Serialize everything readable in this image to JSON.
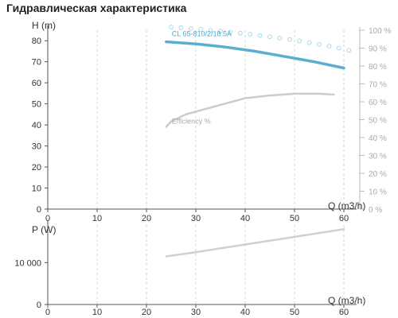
{
  "title": "Гидравлическая характеристика",
  "chart_data": [
    {
      "type": "line",
      "name": "head-chart",
      "xlabel": "Q (m3/h)",
      "ylabel": "H (m)",
      "y2label": "",
      "xlim": [
        0,
        60
      ],
      "ylim": [
        0,
        85
      ],
      "y2lim": [
        0,
        100
      ],
      "xticks": [
        "0",
        "10",
        "20",
        "30",
        "40",
        "50",
        "60"
      ],
      "yticks": [
        "0",
        "10",
        "20",
        "30",
        "40",
        "50",
        "60",
        "70",
        "80"
      ],
      "y2ticks": [
        "0 %",
        "10 %",
        "20 %",
        "30 %",
        "40 %",
        "50 %",
        "60 %",
        "70 %",
        "80 %",
        "90 %",
        "100 %"
      ],
      "grid": true,
      "series": [
        {
          "name": "CL 65-810/2/18.5A",
          "axis": "left",
          "color": "#5aaed0",
          "x": [
            24,
            30,
            36,
            42,
            48,
            54,
            60
          ],
          "y": [
            79.5,
            78.5,
            77,
            75,
            72.5,
            70,
            67
          ]
        },
        {
          "name": "Efficiency %",
          "axis": "right",
          "color": "#cccccc",
          "x": [
            24,
            25,
            28,
            32,
            36,
            40,
            45,
            50,
            55,
            58
          ],
          "y": [
            46,
            49,
            53,
            56,
            59,
            62,
            63.5,
            64.5,
            64.5,
            64
          ]
        },
        {
          "name": "",
          "axis": "left",
          "style": "circles",
          "color": "#a9d8ec",
          "x": [
            25,
            27,
            29,
            31,
            33,
            35,
            37,
            39,
            41,
            43,
            45,
            47,
            49,
            51,
            53,
            55,
            57,
            59,
            61
          ],
          "y": [
            86.5,
            86.2,
            85.8,
            85.4,
            85,
            84.6,
            84.1,
            83.6,
            83.1,
            82.5,
            81.9,
            81.3,
            80.6,
            79.9,
            79.1,
            78.3,
            77.4,
            76.5,
            75.5
          ]
        }
      ]
    },
    {
      "type": "line",
      "name": "power-chart",
      "xlabel": "Q (m3/h)",
      "ylabel": "P (W)",
      "xlim": [
        0,
        60
      ],
      "ylim": [
        0,
        19000
      ],
      "xticks": [
        "0",
        "10",
        "20",
        "30",
        "40",
        "50",
        "60"
      ],
      "yticks": [
        {
          "value": 0,
          "label": "0"
        },
        {
          "value": 10000,
          "label": "10 000"
        }
      ],
      "grid": true,
      "series": [
        {
          "name": "",
          "color": "#d0d0d0",
          "x": [
            24,
            30,
            36,
            42,
            48,
            54,
            60
          ],
          "y": [
            11500,
            12500,
            13600,
            14700,
            15800,
            16900,
            18000
          ]
        }
      ]
    }
  ]
}
